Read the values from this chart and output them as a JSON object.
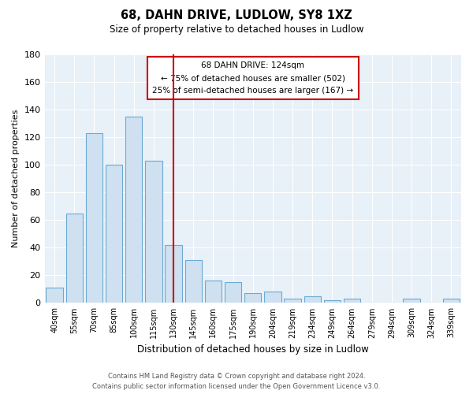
{
  "title": "68, DAHN DRIVE, LUDLOW, SY8 1XZ",
  "subtitle": "Size of property relative to detached houses in Ludlow",
  "xlabel": "Distribution of detached houses by size in Ludlow",
  "ylabel": "Number of detached properties",
  "categories": [
    "40sqm",
    "55sqm",
    "70sqm",
    "85sqm",
    "100sqm",
    "115sqm",
    "130sqm",
    "145sqm",
    "160sqm",
    "175sqm",
    "190sqm",
    "204sqm",
    "219sqm",
    "234sqm",
    "249sqm",
    "264sqm",
    "279sqm",
    "294sqm",
    "309sqm",
    "324sqm",
    "339sqm"
  ],
  "values": [
    11,
    65,
    123,
    100,
    135,
    103,
    42,
    31,
    16,
    15,
    7,
    8,
    3,
    5,
    2,
    3,
    0,
    0,
    3,
    0,
    3
  ],
  "bar_color": "#cfe0f0",
  "bar_edge_color": "#6aaad4",
  "vline_x": 6,
  "vline_color": "#cc0000",
  "ylim": [
    0,
    180
  ],
  "yticks": [
    0,
    20,
    40,
    60,
    80,
    100,
    120,
    140,
    160,
    180
  ],
  "annotation_title": "68 DAHN DRIVE: 124sqm",
  "annotation_line1": "← 75% of detached houses are smaller (502)",
  "annotation_line2": "25% of semi-detached houses are larger (167) →",
  "annotation_box_color": "#ffffff",
  "annotation_box_edge": "#cc0000",
  "footer1": "Contains HM Land Registry data © Crown copyright and database right 2024.",
  "footer2": "Contains public sector information licensed under the Open Government Licence v3.0.",
  "background_color": "#ffffff",
  "plot_bg_color": "#e8f0f8",
  "grid_color": "#ffffff"
}
